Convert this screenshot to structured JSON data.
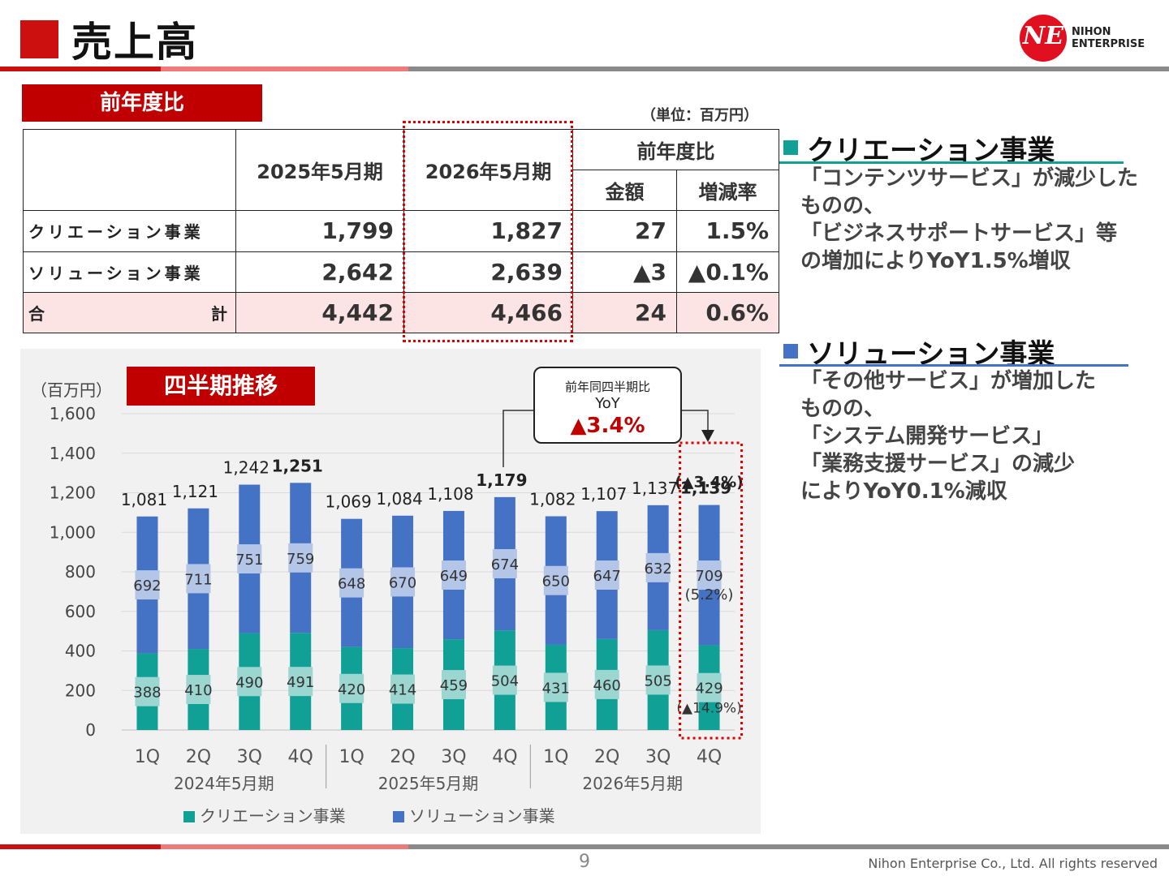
{
  "page": {
    "title": "売上高",
    "page_number": "9",
    "copyright": "Nihon Enterprise Co., Ltd. All rights reserved"
  },
  "logo": {
    "mark": "NE",
    "line1": "NIHON",
    "line2": "ENTERPRISE"
  },
  "colors": {
    "accent_red": "#c00000",
    "creation": "#10a096",
    "solution": "#4472c4"
  },
  "summary": {
    "section_label": "前年度比",
    "unit": "（単位：百万円）",
    "headers": {
      "fy2025": "2025年5月期",
      "fy2026": "2026年5月期",
      "yoy": "前年度比",
      "amount": "金額",
      "rate": "増減率"
    },
    "rows": [
      {
        "name": "クリエーション事業",
        "fy2025": "1,799",
        "fy2026": "1,827",
        "amount": "27",
        "rate": "1.5%"
      },
      {
        "name": "ソリューション事業",
        "fy2025": "2,642",
        "fy2026": "2,639",
        "amount": "▲3",
        "rate": "▲0.1%"
      }
    ],
    "total": {
      "name_left": "合",
      "name_right": "計",
      "fy2025": "4,442",
      "fy2026": "4,466",
      "amount": "24",
      "rate": "0.6%"
    }
  },
  "segments": {
    "creation": {
      "title": "クリエーション事業",
      "lines": [
        "「コンテンツサービス」が減少した",
        "ものの、",
        "「ビジネスサポートサービス」等",
        "の増加によりYoY1.5%増収"
      ]
    },
    "solution": {
      "title": "ソリューション事業",
      "lines": [
        "「その他サービス」が増加した",
        "ものの、",
        "「システム開発サービス」",
        "「業務支援サービス」の減少",
        "によりYoY0.1%減収"
      ]
    }
  },
  "quarterly": {
    "section_label": "四半期推移",
    "callout": {
      "line1": "前年同四半期比",
      "line2": "YoY",
      "value": "▲3.4%"
    }
  },
  "chart_data": {
    "type": "bar",
    "stacked": true,
    "ylabel": "（百万円）",
    "ylim": [
      0,
      1600
    ],
    "yticks": [
      0,
      200,
      400,
      600,
      800,
      1000,
      1200,
      1400,
      1600
    ],
    "grid": true,
    "legend": "bottom",
    "categories": [
      "1Q",
      "2Q",
      "3Q",
      "4Q",
      "1Q",
      "2Q",
      "3Q",
      "4Q",
      "1Q",
      "2Q",
      "3Q",
      "4Q"
    ],
    "groups": [
      {
        "label": "2024年5月期",
        "count": 4
      },
      {
        "label": "2025年5月期",
        "count": 4
      },
      {
        "label": "2026年5月期",
        "count": 4
      }
    ],
    "series": [
      {
        "name": "クリエーション事業",
        "values": [
          388,
          410,
          490,
          491,
          420,
          414,
          459,
          504,
          431,
          460,
          505,
          429
        ]
      },
      {
        "name": "ソリューション事業",
        "values": [
          692,
          711,
          751,
          759,
          648,
          670,
          649,
          674,
          650,
          647,
          632,
          709
        ]
      }
    ],
    "totals": [
      "1,081",
      "1,121",
      "1,242",
      "1,251",
      "1,069",
      "1,084",
      "1,108",
      "1,179",
      "1,082",
      "1,107",
      "1,137",
      "1,139"
    ],
    "bold_totals": [
      3,
      7,
      11
    ],
    "annotations": {
      "total_yoy": "(▲3.4%)",
      "solution_yoy": "(5.2%)",
      "creation_yoy": "(▲14.9%)"
    }
  }
}
